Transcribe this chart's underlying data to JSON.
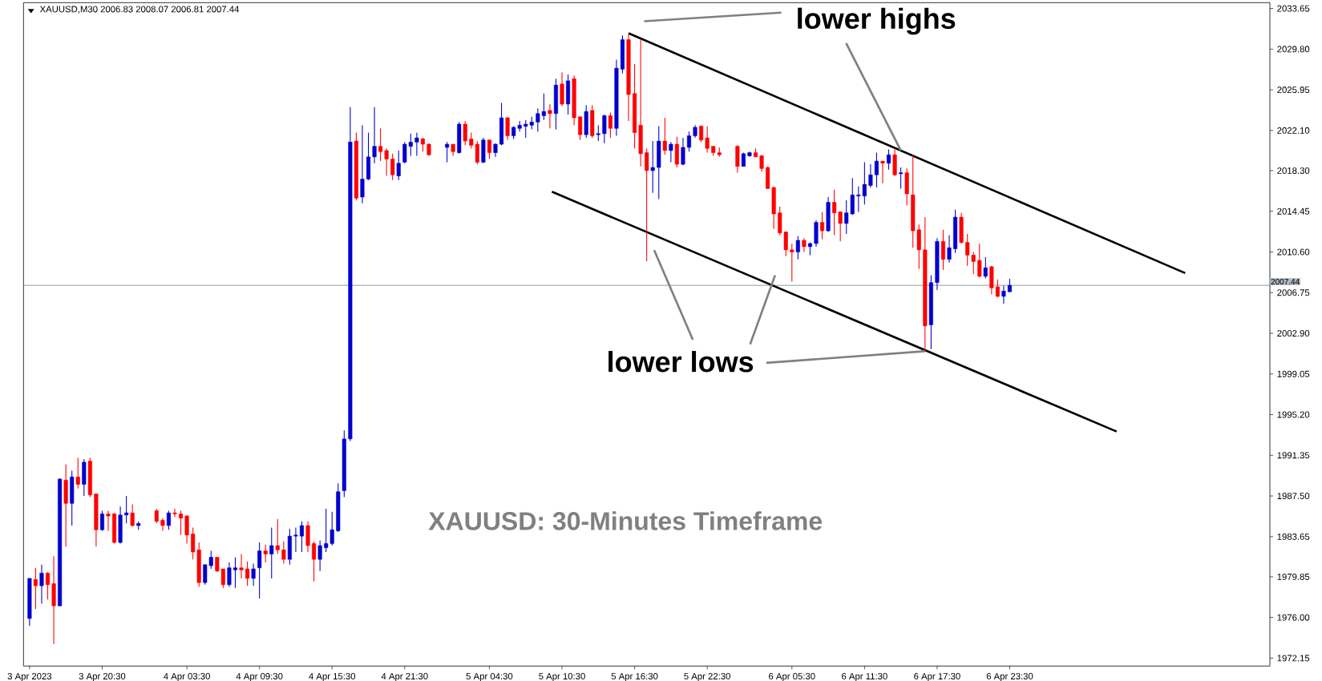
{
  "chart_data": {
    "type": "candlestick",
    "title": "XAUUSD: 30-Minutes Timeframe",
    "annotations": [
      "XAUUSD,M30  2006.83 2008.07 2006.81 2007.44",
      {
        "text": "lower highs",
        "x": "2023-04-06T14:30",
        "y": 2020.2
      },
      {
        "text": "lower lows",
        "x": "2023-04-06T16:30",
        "y": 2001.2
      }
    ],
    "x": [
      "2023-04-03T14:30",
      "2023-04-03T15:00",
      "2023-04-03T15:30",
      "2023-04-03T16:00",
      "2023-04-03T16:30",
      "2023-04-03T17:00",
      "2023-04-03T17:30",
      "2023-04-03T18:00",
      "2023-04-03T18:30",
      "2023-04-03T19:00",
      "2023-04-03T19:30",
      "2023-04-03T20:00",
      "2023-04-03T20:30",
      "2023-04-03T21:00",
      "2023-04-03T21:30",
      "2023-04-03T22:00",
      "2023-04-03T22:30",
      "2023-04-03T23:00",
      "2023-04-03T23:30",
      "2023-04-04T01:00",
      "2023-04-04T01:30",
      "2023-04-04T02:00",
      "2023-04-04T02:30",
      "2023-04-04T03:00",
      "2023-04-04T03:30",
      "2023-04-04T04:00",
      "2023-04-04T04:30",
      "2023-04-04T05:00",
      "2023-04-04T05:30",
      "2023-04-04T06:00",
      "2023-04-04T06:30",
      "2023-04-04T07:00",
      "2023-04-04T07:30",
      "2023-04-04T08:00",
      "2023-04-04T08:30",
      "2023-04-04T09:00",
      "2023-04-04T09:30",
      "2023-04-04T10:00",
      "2023-04-04T10:30",
      "2023-04-04T11:00",
      "2023-04-04T11:30",
      "2023-04-04T12:00",
      "2023-04-04T12:30",
      "2023-04-04T13:00",
      "2023-04-04T13:30",
      "2023-04-04T14:00",
      "2023-04-04T14:30",
      "2023-04-04T15:00",
      "2023-04-04T15:30",
      "2023-04-04T16:00",
      "2023-04-04T16:30",
      "2023-04-04T17:00",
      "2023-04-04T17:30",
      "2023-04-04T18:00",
      "2023-04-04T18:30",
      "2023-04-04T19:00",
      "2023-04-04T19:30",
      "2023-04-04T20:00",
      "2023-04-04T20:30",
      "2023-04-04T21:00",
      "2023-04-04T21:30",
      "2023-04-04T22:00",
      "2023-04-04T22:30",
      "2023-04-04T23:00",
      "2023-04-04T23:30",
      "2023-04-05T01:00",
      "2023-04-05T01:30",
      "2023-04-05T02:00",
      "2023-04-05T02:30",
      "2023-04-05T03:00",
      "2023-04-05T03:30",
      "2023-04-05T04:00",
      "2023-04-05T04:30",
      "2023-04-05T05:00",
      "2023-04-05T05:30",
      "2023-04-05T06:00",
      "2023-04-05T06:30",
      "2023-04-05T07:00",
      "2023-04-05T07:30",
      "2023-04-05T08:00",
      "2023-04-05T08:30",
      "2023-04-05T09:00",
      "2023-04-05T09:30",
      "2023-04-05T10:00",
      "2023-04-05T10:30",
      "2023-04-05T11:00",
      "2023-04-05T11:30",
      "2023-04-05T12:00",
      "2023-04-05T12:30",
      "2023-04-05T13:00",
      "2023-04-05T13:30",
      "2023-04-05T14:00",
      "2023-04-05T14:30",
      "2023-04-05T15:00",
      "2023-04-05T15:30",
      "2023-04-05T16:00",
      "2023-04-05T16:30",
      "2023-04-05T17:00",
      "2023-04-05T17:30",
      "2023-04-05T18:00",
      "2023-04-05T18:30",
      "2023-04-05T19:00",
      "2023-04-05T19:30",
      "2023-04-05T20:00",
      "2023-04-05T20:30",
      "2023-04-05T21:00",
      "2023-04-05T21:30",
      "2023-04-05T22:00",
      "2023-04-05T22:30",
      "2023-04-05T23:00",
      "2023-04-05T23:30",
      "2023-04-06T01:00",
      "2023-04-06T01:30",
      "2023-04-06T02:00",
      "2023-04-06T02:30",
      "2023-04-06T03:00",
      "2023-04-06T03:30",
      "2023-04-06T04:00",
      "2023-04-06T04:30",
      "2023-04-06T05:00",
      "2023-04-06T05:30",
      "2023-04-06T06:00",
      "2023-04-06T06:30",
      "2023-04-06T07:00",
      "2023-04-06T07:30",
      "2023-04-06T08:00",
      "2023-04-06T08:30",
      "2023-04-06T09:00",
      "2023-04-06T09:30",
      "2023-04-06T10:00",
      "2023-04-06T10:30",
      "2023-04-06T11:00",
      "2023-04-06T11:30",
      "2023-04-06T12:00",
      "2023-04-06T12:30",
      "2023-04-06T13:00",
      "2023-04-06T13:30",
      "2023-04-06T14:00",
      "2023-04-06T14:30",
      "2023-04-06T15:00",
      "2023-04-06T15:30",
      "2023-04-06T16:00",
      "2023-04-06T16:30",
      "2023-04-06T17:00",
      "2023-04-06T17:30",
      "2023-04-06T18:00",
      "2023-04-06T18:30",
      "2023-04-06T19:00",
      "2023-04-06T19:30",
      "2023-04-06T20:00",
      "2023-04-06T20:30",
      "2023-04-06T21:00",
      "2023-04-06T21:30",
      "2023-04-06T22:00",
      "2023-04-06T22:30",
      "2023-04-06T23:00",
      "2023-04-06T23:30"
    ],
    "ohlc": [
      [
        1975.9,
        1979.7,
        1975.2,
        1979.7
      ],
      [
        1979.6,
        1980.7,
        1976.8,
        1979.0
      ],
      [
        1979.0,
        1981.0,
        1977.3,
        1980.2
      ],
      [
        1980.2,
        1980.3,
        1977.7,
        1979.1
      ],
      [
        1979.2,
        1981.8,
        1973.5,
        1977.1
      ],
      [
        1977.1,
        1989.2,
        1977.1,
        1989.1
      ],
      [
        1989.0,
        1990.5,
        1982.7,
        1986.8
      ],
      [
        1986.8,
        1989.9,
        1984.7,
        1989.3
      ],
      [
        1989.3,
        1991.1,
        1988.2,
        1988.6
      ],
      [
        1988.6,
        1991.0,
        1987.5,
        1990.7
      ],
      [
        1990.8,
        1991.1,
        1987.4,
        1987.6
      ],
      [
        1987.7,
        1987.7,
        1982.7,
        1984.3
      ],
      [
        1984.3,
        1986.1,
        1984.2,
        1985.8
      ],
      [
        1985.8,
        1986.1,
        1984.2,
        1985.6
      ],
      [
        1985.8,
        1985.9,
        1983.0,
        1983.1
      ],
      [
        1983.1,
        1986.5,
        1983.0,
        1985.7
      ],
      [
        1985.7,
        1987.5,
        1984.9,
        1985.9
      ],
      [
        1985.9,
        1986.7,
        1984.6,
        1984.7
      ],
      [
        1984.7,
        1985.1,
        1984.3,
        1984.9
      ],
      [
        1986.1,
        1986.3,
        1984.9,
        1985.1
      ],
      [
        1985.2,
        1985.4,
        1984.2,
        1984.7
      ],
      [
        1984.7,
        1986.1,
        1984.3,
        1985.9
      ],
      [
        1985.9,
        1986.3,
        1985.5,
        1985.8
      ],
      [
        1985.8,
        1986.1,
        1983.8,
        1985.4
      ],
      [
        1985.6,
        1985.7,
        1983.0,
        1983.8
      ],
      [
        1983.9,
        1984.5,
        1981.5,
        1982.2
      ],
      [
        1982.4,
        1983.1,
        1978.9,
        1979.3
      ],
      [
        1979.3,
        1981.0,
        1979.1,
        1981.0
      ],
      [
        1980.9,
        1982.3,
        1980.6,
        1981.7
      ],
      [
        1981.7,
        1981.7,
        1980.3,
        1980.4
      ],
      [
        1980.6,
        1980.6,
        1978.8,
        1979.1
      ],
      [
        1979.1,
        1981.2,
        1978.9,
        1980.7
      ],
      [
        1980.5,
        1981.7,
        1978.8,
        1980.7
      ],
      [
        1980.7,
        1982.0,
        1979.7,
        1980.5
      ],
      [
        1980.6,
        1981.3,
        1979.0,
        1979.7
      ],
      [
        1979.7,
        1981.1,
        1979.0,
        1980.6
      ],
      [
        1980.7,
        1983.1,
        1977.8,
        1982.3
      ],
      [
        1982.3,
        1982.9,
        1981.2,
        1982.0
      ],
      [
        1982.0,
        1984.5,
        1979.7,
        1982.8
      ],
      [
        1982.8,
        1985.3,
        1982.0,
        1982.4
      ],
      [
        1982.4,
        1983.2,
        1981.1,
        1981.5
      ],
      [
        1981.5,
        1984.4,
        1981.0,
        1983.7
      ],
      [
        1983.7,
        1984.5,
        1982.2,
        1983.8
      ],
      [
        1983.7,
        1985.1,
        1982.2,
        1984.7
      ],
      [
        1984.7,
        1985.1,
        1982.2,
        1982.8
      ],
      [
        1983.0,
        1983.2,
        1979.4,
        1981.5
      ],
      [
        1981.5,
        1983.3,
        1980.4,
        1982.8
      ],
      [
        1982.6,
        1986.3,
        1982.2,
        1983.0
      ],
      [
        1983.0,
        1986.0,
        1982.8,
        1984.3
      ],
      [
        1984.2,
        1988.7,
        1984.1,
        1987.9
      ],
      [
        1988.0,
        1993.7,
        1987.4,
        1992.9
      ],
      [
        1992.9,
        2024.3,
        1992.7,
        2021.0
      ],
      [
        2021.1,
        2021.9,
        2015.5,
        2015.7
      ],
      [
        2015.8,
        2022.6,
        2015.2,
        2017.5
      ],
      [
        2017.5,
        2021.9,
        2017.4,
        2019.6
      ],
      [
        2019.6,
        2024.3,
        2019.0,
        2020.6
      ],
      [
        2020.6,
        2022.3,
        2019.2,
        2020.1
      ],
      [
        2020.2,
        2020.4,
        2017.8,
        2019.4
      ],
      [
        2019.4,
        2019.9,
        2017.4,
        2017.9
      ],
      [
        2017.8,
        2020.2,
        2017.4,
        2019.0
      ],
      [
        2019.1,
        2021.0,
        2019.0,
        2020.8
      ],
      [
        2020.6,
        2021.8,
        2019.7,
        2021.0
      ],
      [
        2021.0,
        2021.9,
        2019.7,
        2021.4
      ],
      [
        2021.3,
        2021.4,
        2020.1,
        2020.8
      ],
      [
        2020.8,
        2020.9,
        2019.7,
        2019.8
      ],
      [
        2020.5,
        2021.0,
        2019.1,
        2020.8
      ],
      [
        2020.8,
        2020.8,
        2019.7,
        2020.1
      ],
      [
        2020.0,
        2022.9,
        2019.9,
        2022.7
      ],
      [
        2022.7,
        2023.0,
        2020.7,
        2021.1
      ],
      [
        2021.3,
        2021.9,
        2020.4,
        2020.7
      ],
      [
        2020.8,
        2021.1,
        2018.9,
        2019.1
      ],
      [
        2019.1,
        2021.4,
        2019.0,
        2021.2
      ],
      [
        2021.2,
        2021.2,
        2019.4,
        2020.0
      ],
      [
        2020.0,
        2020.9,
        2019.6,
        2020.8
      ],
      [
        2020.8,
        2024.7,
        2020.7,
        2023.3
      ],
      [
        2023.3,
        2023.4,
        2021.2,
        2021.6
      ],
      [
        2021.6,
        2022.5,
        2021.3,
        2022.4
      ],
      [
        2022.3,
        2023.0,
        2022.0,
        2022.6
      ],
      [
        2022.5,
        2023.1,
        2021.4,
        2022.7
      ],
      [
        2022.6,
        2023.4,
        2022.2,
        2022.9
      ],
      [
        2022.9,
        2024.2,
        2022.0,
        2023.7
      ],
      [
        2023.5,
        2025.6,
        2023.1,
        2023.9
      ],
      [
        2024.0,
        2024.6,
        2022.3,
        2023.7
      ],
      [
        2023.7,
        2027.0,
        2022.2,
        2026.4
      ],
      [
        2026.5,
        2027.6,
        2024.4,
        2024.6
      ],
      [
        2024.6,
        2027.4,
        2023.6,
        2026.8
      ],
      [
        2027.0,
        2027.3,
        2022.6,
        2023.3
      ],
      [
        2023.4,
        2023.4,
        2021.2,
        2021.7
      ],
      [
        2021.7,
        2024.5,
        2021.4,
        2023.9
      ],
      [
        2024.0,
        2024.5,
        2021.4,
        2021.6
      ],
      [
        2021.7,
        2022.6,
        2021.1,
        2021.8
      ],
      [
        2021.8,
        2023.6,
        2020.9,
        2023.5
      ],
      [
        2023.5,
        2023.8,
        2021.4,
        2022.3
      ],
      [
        2022.3,
        2028.8,
        2021.6,
        2028.0
      ],
      [
        2027.9,
        2031.1,
        2027.5,
        2030.7
      ],
      [
        2030.7,
        2031.2,
        2023.0,
        2025.5
      ],
      [
        2025.6,
        2028.4,
        2020.4,
        2021.9
      ],
      [
        2022.6,
        2030.7,
        2018.7,
        2019.9
      ],
      [
        2020.0,
        2020.4,
        2009.7,
        2018.3
      ],
      [
        2018.3,
        2021.1,
        2016.2,
        2018.6
      ],
      [
        2018.6,
        2022.5,
        2015.6,
        2021.1
      ],
      [
        2021.1,
        2023.3,
        2019.8,
        2020.2
      ],
      [
        2020.2,
        2021.0,
        2019.1,
        2020.8
      ],
      [
        2020.8,
        2021.5,
        2018.6,
        2018.9
      ],
      [
        2018.9,
        2021.4,
        2018.8,
        2020.5
      ],
      [
        2020.5,
        2022.0,
        2020.1,
        2021.6
      ],
      [
        2021.6,
        2022.6,
        2021.4,
        2022.4
      ],
      [
        2022.5,
        2022.6,
        2021.0,
        2021.2
      ],
      [
        2021.4,
        2022.5,
        2020.0,
        2020.4
      ],
      [
        2020.6,
        2020.6,
        2019.7,
        2020.0
      ],
      [
        2020.0,
        2020.5,
        2019.6,
        2019.8
      ],
      [
        2020.6,
        2020.7,
        2018.1,
        2018.7
      ],
      [
        2018.7,
        2020.0,
        2018.7,
        2019.9
      ],
      [
        2019.7,
        2020.1,
        2019.6,
        2020.0
      ],
      [
        2020.0,
        2020.4,
        2019.6,
        2019.6
      ],
      [
        2019.7,
        2019.8,
        2018.2,
        2018.5
      ],
      [
        2018.6,
        2018.7,
        2016.6,
        2016.6
      ],
      [
        2016.7,
        2016.8,
        2012.8,
        2014.2
      ],
      [
        2014.3,
        2014.9,
        2012.2,
        2012.4
      ],
      [
        2012.5,
        2012.5,
        2010.2,
        2010.8
      ],
      [
        2010.8,
        2011.4,
        2007.8,
        2010.6
      ],
      [
        2010.6,
        2012.1,
        2009.9,
        2011.7
      ],
      [
        2011.7,
        2011.9,
        2010.6,
        2011.1
      ],
      [
        2011.1,
        2011.5,
        2010.3,
        2011.4
      ],
      [
        2011.4,
        2013.6,
        2011.1,
        2013.4
      ],
      [
        2013.4,
        2014.4,
        2011.8,
        2012.6
      ],
      [
        2012.6,
        2015.8,
        2012.5,
        2015.3
      ],
      [
        2015.3,
        2016.5,
        2012.2,
        2014.3
      ],
      [
        2014.4,
        2014.4,
        2011.6,
        2013.3
      ],
      [
        2013.3,
        2015.5,
        2012.3,
        2014.3
      ],
      [
        2014.2,
        2017.6,
        2014.1,
        2016.0
      ],
      [
        2015.9,
        2016.8,
        2014.4,
        2016.0
      ],
      [
        2015.9,
        2019.1,
        2015.1,
        2017.0
      ],
      [
        2016.9,
        2018.9,
        2016.7,
        2017.9
      ],
      [
        2017.9,
        2020.0,
        2016.7,
        2019.2
      ],
      [
        2019.2,
        2019.2,
        2017.1,
        2019.0
      ],
      [
        2019.0,
        2020.3,
        2018.4,
        2019.8
      ],
      [
        2019.8,
        2020.3,
        2017.8,
        2017.9
      ],
      [
        2018.0,
        2018.6,
        2016.6,
        2018.1
      ],
      [
        2018.1,
        2018.5,
        2015.0,
        2016.1
      ],
      [
        2016.0,
        2019.8,
        2011.0,
        2012.6
      ],
      [
        2012.7,
        2013.2,
        2009.0,
        2010.8
      ],
      [
        2010.8,
        2013.9,
        2001.2,
        2003.6
      ],
      [
        2003.7,
        2008.4,
        2001.4,
        2007.7
      ],
      [
        2007.7,
        2011.9,
        2007.0,
        2011.6
      ],
      [
        2011.6,
        2012.7,
        2008.9,
        2009.9
      ],
      [
        2009.9,
        2012.2,
        2009.6,
        2011.0
      ],
      [
        2010.9,
        2014.6,
        2010.5,
        2013.9
      ],
      [
        2013.9,
        2014.3,
        2011.4,
        2011.5
      ],
      [
        2011.5,
        2012.3,
        2009.3,
        2010.3
      ],
      [
        2010.3,
        2010.6,
        2008.5,
        2009.7
      ],
      [
        2009.8,
        2011.4,
        2008.2,
        2008.3
      ],
      [
        2008.3,
        2010.1,
        2008.1,
        2009.1
      ],
      [
        2009.2,
        2009.3,
        2006.6,
        2007.2
      ],
      [
        2007.3,
        2008.0,
        2006.3,
        2006.4
      ],
      [
        2006.4,
        2007.4,
        2005.7,
        2006.9
      ],
      [
        2006.83,
        2008.07,
        2006.81,
        2007.44
      ]
    ],
    "colors": [
      "#0000cd",
      "#ff0000",
      "#0000cd",
      "#ff0000",
      "#ff0000",
      "#0000cd",
      "#ff0000",
      "#0000cd",
      "#ff0000",
      "#0000cd",
      "#ff0000",
      "#ff0000",
      "#0000cd",
      "#ff0000",
      "#ff0000",
      "#0000cd",
      "#0000cd",
      "#ff0000",
      "#0000cd",
      "#ff0000",
      "#ff0000",
      "#0000cd",
      "#ff0000",
      "#ff0000",
      "#ff0000",
      "#ff0000",
      "#ff0000",
      "#0000cd",
      "#0000cd",
      "#ff0000",
      "#ff0000",
      "#0000cd",
      "#0000cd",
      "#ff0000",
      "#ff0000",
      "#0000cd",
      "#0000cd",
      "#ff0000",
      "#0000cd",
      "#ff0000",
      "#ff0000",
      "#0000cd",
      "#0000cd",
      "#0000cd",
      "#ff0000",
      "#ff0000",
      "#0000cd",
      "#0000cd",
      "#0000cd",
      "#0000cd",
      "#0000cd",
      "#0000cd",
      "#ff0000",
      "#0000cd",
      "#0000cd",
      "#0000cd",
      "#ff0000",
      "#ff0000",
      "#ff0000",
      "#0000cd",
      "#0000cd",
      "#0000cd",
      "#0000cd",
      "#ff0000",
      "#ff0000",
      "#0000cd",
      "#ff0000",
      "#0000cd",
      "#ff0000",
      "#ff0000",
      "#ff0000",
      "#0000cd",
      "#ff0000",
      "#0000cd",
      "#0000cd",
      "#ff0000",
      "#0000cd",
      "#0000cd",
      "#0000cd",
      "#0000cd",
      "#0000cd",
      "#0000cd",
      "#ff0000",
      "#0000cd",
      "#ff0000",
      "#0000cd",
      "#ff0000",
      "#ff0000",
      "#0000cd",
      "#ff0000",
      "#0000cd",
      "#0000cd",
      "#ff0000",
      "#0000cd",
      "#0000cd",
      "#ff0000",
      "#ff0000",
      "#ff0000",
      "#ff0000",
      "#0000cd",
      "#0000cd",
      "#ff0000",
      "#0000cd",
      "#ff0000",
      "#0000cd",
      "#0000cd",
      "#0000cd",
      "#ff0000",
      "#ff0000",
      "#ff0000",
      "#ff0000",
      "#ff0000",
      "#0000cd",
      "#0000cd",
      "#ff0000",
      "#ff0000",
      "#ff0000",
      "#ff0000",
      "#ff0000",
      "#ff0000",
      "#ff0000",
      "#0000cd",
      "#ff0000",
      "#0000cd",
      "#0000cd",
      "#ff0000",
      "#0000cd",
      "#ff0000",
      "#ff0000",
      "#0000cd",
      "#0000cd",
      "#0000cd",
      "#0000cd",
      "#0000cd",
      "#0000cd",
      "#ff0000",
      "#0000cd",
      "#ff0000",
      "#0000cd",
      "#ff0000",
      "#ff0000",
      "#ff0000",
      "#ff0000",
      "#0000cd",
      "#0000cd",
      "#ff0000",
      "#0000cd",
      "#0000cd",
      "#ff0000",
      "#ff0000",
      "#ff0000",
      "#ff0000",
      "#0000cd",
      "#ff0000",
      "#ff0000",
      "#0000cd",
      "#0000cd"
    ],
    "series": [
      {
        "type": "line",
        "color": "#000000",
        "x": [
          "2023-04-05T16:00",
          "2023-04-07T14:00"
        ],
        "values": [
          2031.3,
          2008.6
        ]
      },
      {
        "type": "line",
        "color": "#000000",
        "x": [
          "2023-04-05T09:40",
          "2023-04-07T08:20"
        ],
        "values": [
          2016.3,
          1993.6
        ]
      }
    ],
    "ref_lines": [
      {
        "axis": "y",
        "value": 2007.44,
        "label": "2007.44",
        "color": "#708090"
      }
    ],
    "xlim": [
      "2023-04-03T14:00",
      "2023-04-07T21:00"
    ],
    "ylim": [
      1971.4,
      2034.2
    ],
    "xticks": [
      {
        "value": "2023-04-03T14:30",
        "label": "3 Apr 2023"
      },
      {
        "value": "2023-04-03T20:30",
        "label": "3 Apr 20:30"
      },
      {
        "value": "2023-04-04T03:30",
        "label": "4 Apr 03:30"
      },
      {
        "value": "2023-04-04T09:30",
        "label": "4 Apr 09:30"
      },
      {
        "value": "2023-04-04T15:30",
        "label": "4 Apr 15:30"
      },
      {
        "value": "2023-04-04T21:30",
        "label": "4 Apr 21:30"
      },
      {
        "value": "2023-04-05T04:30",
        "label": "5 Apr 04:30"
      },
      {
        "value": "2023-04-05T10:30",
        "label": "5 Apr 10:30"
      },
      {
        "value": "2023-04-05T16:30",
        "label": "5 Apr 16:30"
      },
      {
        "value": "2023-04-05T22:30",
        "label": "5 Apr 22:30"
      },
      {
        "value": "2023-04-06T05:30",
        "label": "6 Apr 05:30"
      },
      {
        "value": "2023-04-06T11:30",
        "label": "6 Apr 11:30"
      },
      {
        "value": "2023-04-06T17:30",
        "label": "6 Apr 17:30"
      },
      {
        "value": "2023-04-06T23:30",
        "label": "6 Apr 23:30"
      }
    ],
    "yticks": [
      1972.15,
      {
        "value": 1976.0,
        "label": "1976.00"
      },
      1979.85,
      1983.65,
      {
        "value": 1987.5,
        "label": "1987.50"
      },
      1991.35,
      {
        "value": 1995.2,
        "label": "1995.20"
      },
      1999.05,
      {
        "value": 2002.9,
        "label": "2002.90"
      },
      2006.75,
      {
        "value": 2010.6,
        "label": "2010.60"
      },
      2014.45,
      {
        "value": 2018.3,
        "label": "2018.30"
      },
      {
        "value": 2022.1,
        "label": "2022.10"
      },
      2025.95,
      {
        "value": 2029.8,
        "label": "2029.80"
      },
      2033.65
    ]
  }
}
